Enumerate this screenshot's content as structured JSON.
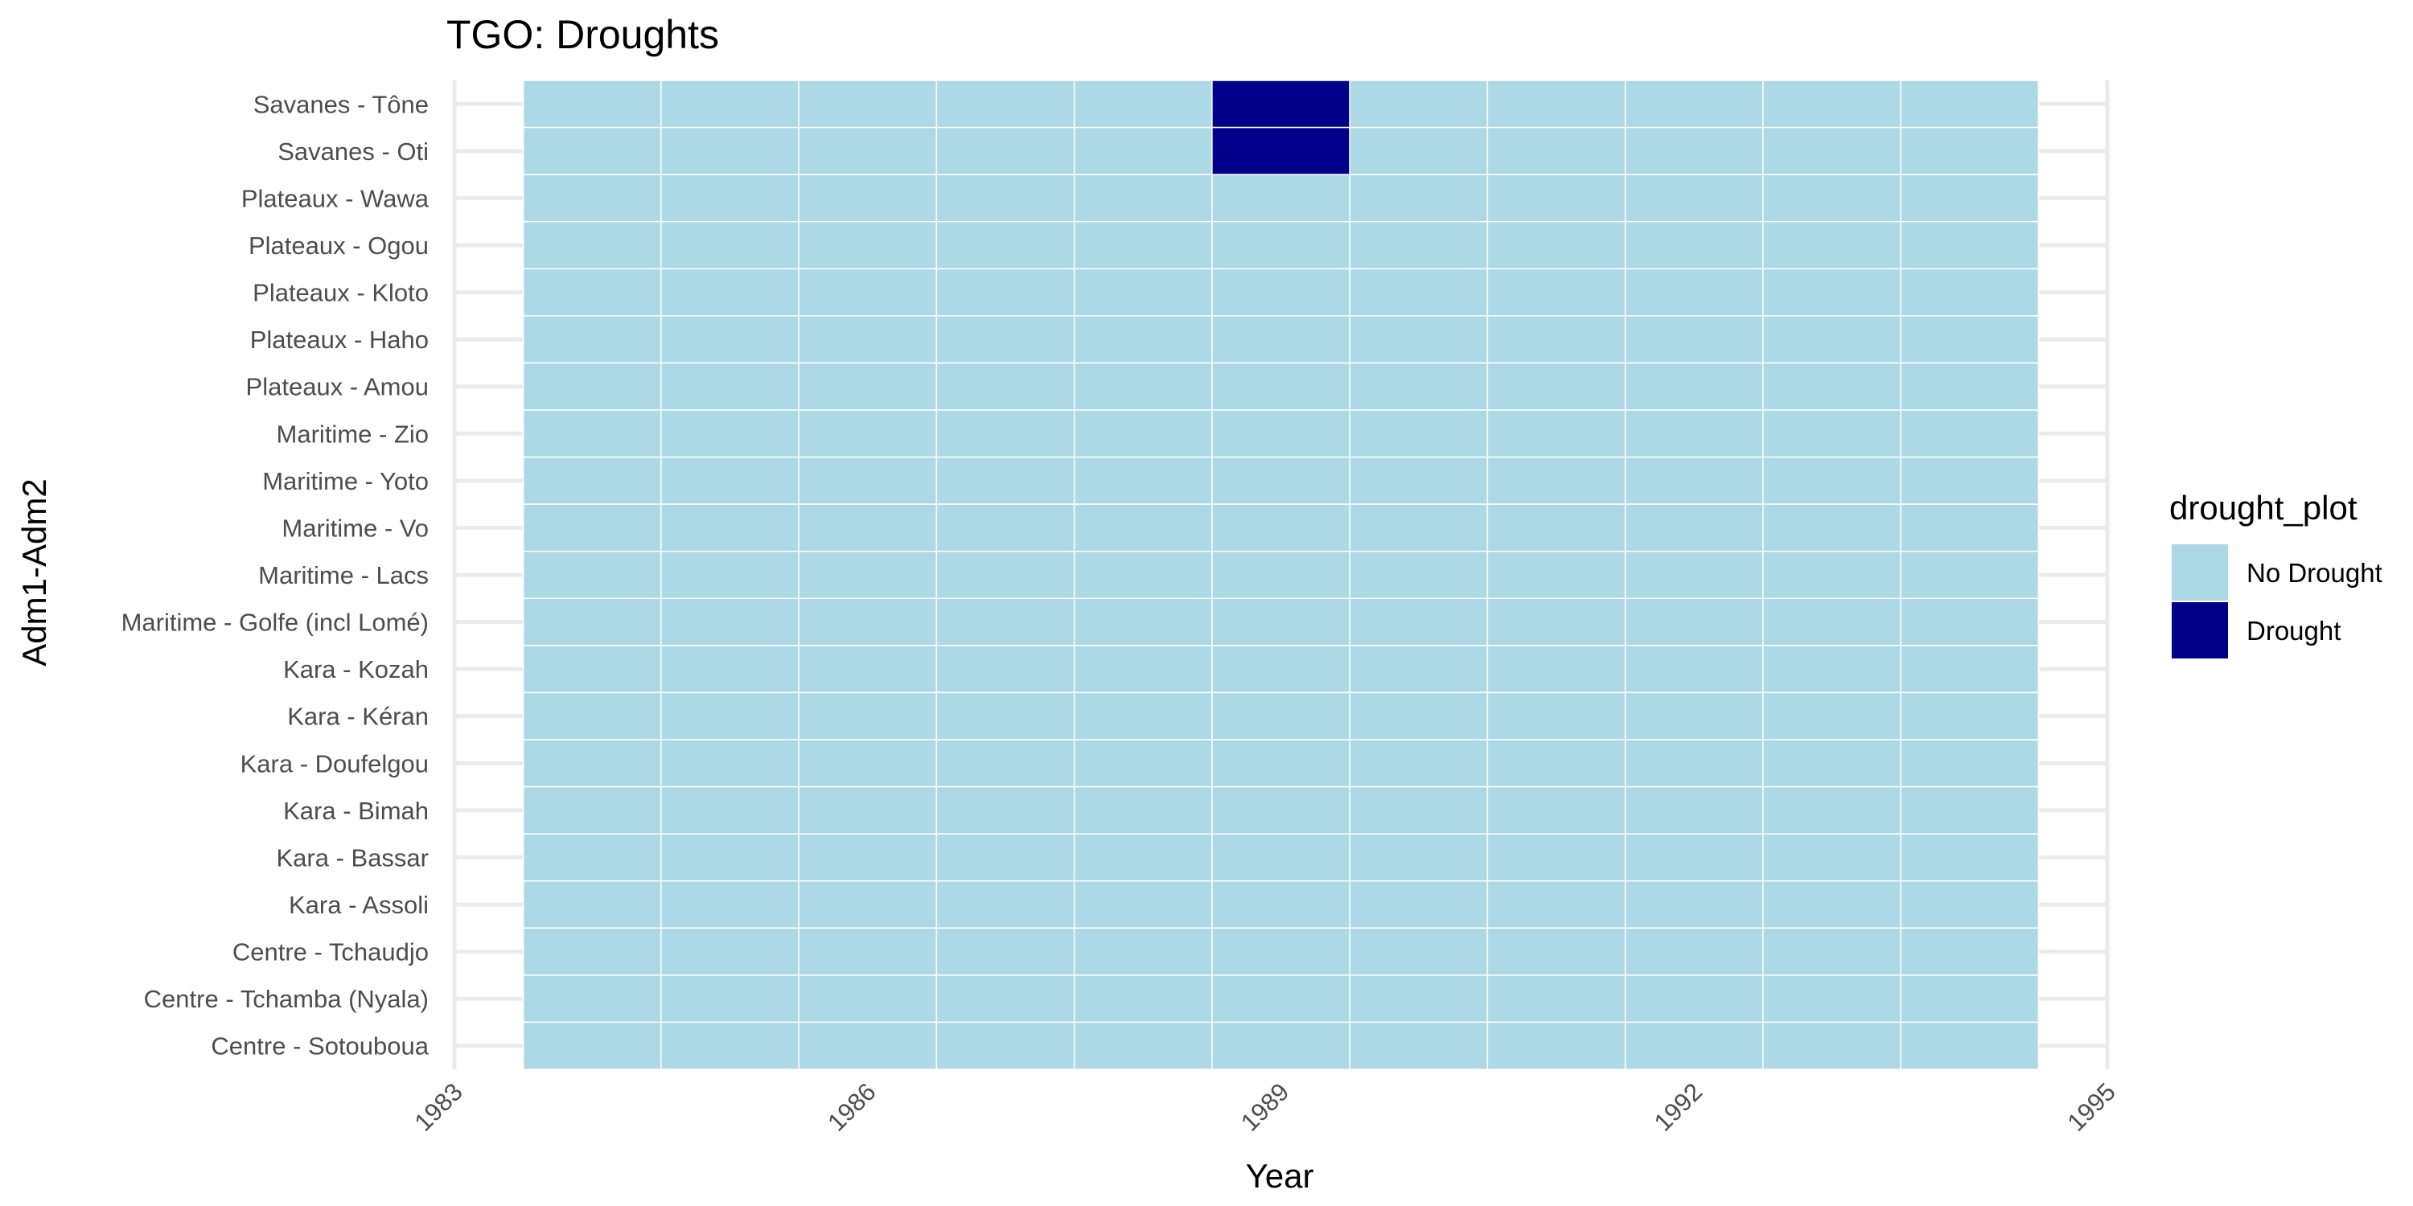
{
  "chart_data": {
    "type": "heatmap",
    "title": "TGO: Droughts",
    "xlabel": "Year",
    "ylabel": "Adm1-Adm2",
    "xlim": [
      1983,
      1995
    ],
    "x_ticks": [
      1983,
      1986,
      1989,
      1992,
      1995
    ],
    "x": [
      1984,
      1985,
      1986,
      1987,
      1988,
      1989,
      1990,
      1991,
      1992,
      1993,
      1994
    ],
    "categories": [
      "Savanes - Tône",
      "Savanes - Oti",
      "Plateaux - Wawa",
      "Plateaux - Ogou",
      "Plateaux - Kloto",
      "Plateaux - Haho",
      "Plateaux - Amou",
      "Maritime - Zio",
      "Maritime - Yoto",
      "Maritime - Vo",
      "Maritime - Lacs",
      "Maritime - Golfe (incl Lomé)",
      "Kara - Kozah",
      "Kara - Kéran",
      "Kara - Doufelgou",
      "Kara - Bimah",
      "Kara - Bassar",
      "Kara - Assoli",
      "Centre - Tchaudjo",
      "Centre - Tchamba (Nyala)",
      "Centre - Sotouboua"
    ],
    "drought": [
      {
        "region": "Savanes - Tône",
        "year": 1989
      },
      {
        "region": "Savanes - Oti",
        "year": 1989
      }
    ],
    "legend": {
      "title": "drought_plot",
      "placement": "right",
      "entries": [
        {
          "label": "No Drought",
          "color": "#add8e6"
        },
        {
          "label": "Drought",
          "color": "#00008b"
        }
      ]
    },
    "grid": true
  }
}
